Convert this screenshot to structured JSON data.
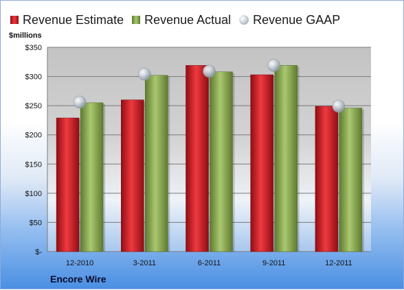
{
  "chart_data": {
    "type": "bar",
    "title": "",
    "ylabel": "$millions",
    "xlabel": "",
    "company": "Encore Wire",
    "categories": [
      "12-2010",
      "3-2011",
      "6-2011",
      "9-2011",
      "12-2011"
    ],
    "ylim": [
      0,
      350
    ],
    "yticks": [
      0,
      50,
      100,
      150,
      200,
      250,
      300,
      350
    ],
    "ytick_labels": [
      "$-",
      "$50",
      "$100",
      "$150",
      "$200",
      "$250",
      "$300",
      "$350"
    ],
    "grid": true,
    "legend_position": "top",
    "series": [
      {
        "name": "Revenue Estimate",
        "type": "bar",
        "color": "#d9262c",
        "values": [
          229,
          260,
          319,
          303,
          249
        ]
      },
      {
        "name": "Revenue Actual",
        "type": "bar",
        "color": "#8cad5a",
        "values": [
          255,
          302,
          308,
          319,
          246
        ]
      },
      {
        "name": "Revenue GAAP",
        "type": "marker",
        "color": "#c4ccd5",
        "values": [
          256,
          304,
          309,
          319,
          249
        ]
      }
    ]
  }
}
